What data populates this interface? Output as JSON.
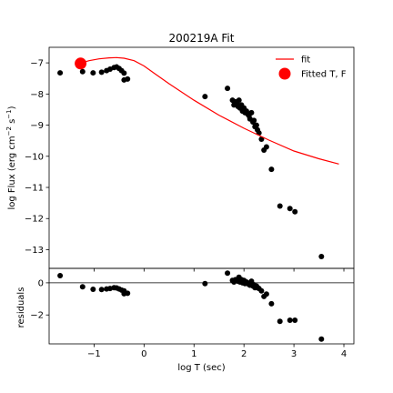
{
  "chart_data": [
    {
      "type": "scatter",
      "title": "200219A Fit",
      "xlabel": "",
      "ylabel": "log Flux (erg cm⁻² s⁻¹)",
      "xlim": [
        -1.9,
        4.2
      ],
      "ylim": [
        -13.6,
        -6.5
      ],
      "xticks": [
        -1,
        0,
        1,
        2,
        3,
        4
      ],
      "yticks": [
        -13,
        -12,
        -11,
        -10,
        -9,
        -8,
        -7
      ],
      "ytick_labels": [
        "−13",
        "−12",
        "−11",
        "−10",
        "−9",
        "−8",
        "−7"
      ],
      "grid": false,
      "legend": {
        "placement": "top-right",
        "entries": [
          "fit",
          "Fitted T, F"
        ]
      },
      "colors": {
        "data": "#000000",
        "fit": "#ff0000",
        "fitted_point": "#ff0000"
      },
      "series": [
        {
          "name": "fit",
          "kind": "line",
          "x": [
            -1.25,
            -1.1,
            -0.9,
            -0.7,
            -0.55,
            -0.4,
            -0.2,
            0.0,
            0.2,
            0.5,
            1.0,
            1.5,
            2.0,
            2.5,
            3.0,
            3.5,
            3.9
          ],
          "y": [
            -7.0,
            -6.93,
            -6.87,
            -6.84,
            -6.83,
            -6.85,
            -6.93,
            -7.1,
            -7.33,
            -7.67,
            -8.2,
            -8.68,
            -9.1,
            -9.48,
            -9.83,
            -10.08,
            -10.25
          ]
        },
        {
          "name": "Fitted T, F",
          "kind": "marker",
          "x": [
            -1.27
          ],
          "y": [
            -7.02
          ]
        },
        {
          "kind": "points",
          "x": [
            -1.68,
            -1.23,
            -1.02,
            -0.85,
            -0.75,
            -0.68,
            -0.6,
            -0.55,
            -0.5,
            -0.45,
            -0.4,
            -0.4,
            -0.33,
            1.22,
            1.67,
            1.77,
            1.8,
            1.83,
            1.86,
            1.88,
            1.9,
            1.92,
            1.95,
            1.97,
            2.0,
            2.02,
            2.05,
            2.08,
            2.1,
            2.12,
            2.15,
            2.18,
            2.2,
            2.22,
            2.25,
            2.27,
            2.3,
            2.35,
            2.4,
            2.45,
            2.55,
            2.72,
            2.92,
            3.02,
            3.55
          ],
          "y": [
            -7.32,
            -7.28,
            -7.32,
            -7.3,
            -7.25,
            -7.2,
            -7.15,
            -7.13,
            -7.18,
            -7.25,
            -7.33,
            -7.55,
            -7.52,
            -8.08,
            -7.82,
            -8.2,
            -8.35,
            -8.25,
            -8.3,
            -8.4,
            -8.2,
            -8.45,
            -8.35,
            -8.55,
            -8.45,
            -8.6,
            -8.55,
            -8.65,
            -8.7,
            -8.8,
            -8.6,
            -8.9,
            -8.85,
            -9.05,
            -9.0,
            -9.15,
            -9.25,
            -9.45,
            -9.8,
            -9.7,
            -10.42,
            -11.6,
            -11.68,
            -11.78,
            -13.22
          ]
        }
      ]
    },
    {
      "type": "scatter",
      "title": "",
      "xlabel": "log T (sec)",
      "ylabel": "residuals",
      "xlim": [
        -1.9,
        4.2
      ],
      "ylim": [
        -3.8,
        0.9
      ],
      "xticks": [
        -1,
        0,
        1,
        2,
        3,
        4
      ],
      "xtick_labels": [
        "−1",
        "0",
        "1",
        "2",
        "3",
        "4"
      ],
      "yticks": [
        -2,
        0
      ],
      "ytick_labels": [
        "−2",
        "0"
      ],
      "hline": 0,
      "grid": false,
      "series": [
        {
          "kind": "points",
          "x": [
            -1.68,
            -1.23,
            -1.02,
            -0.85,
            -0.75,
            -0.68,
            -0.6,
            -0.55,
            -0.5,
            -0.45,
            -0.4,
            -0.4,
            -0.33,
            1.22,
            1.67,
            1.77,
            1.8,
            1.83,
            1.86,
            1.88,
            1.9,
            1.92,
            1.95,
            1.97,
            2.0,
            2.02,
            2.05,
            2.08,
            2.1,
            2.12,
            2.15,
            2.18,
            2.2,
            2.22,
            2.25,
            2.27,
            2.3,
            2.35,
            2.4,
            2.45,
            2.55,
            2.72,
            2.92,
            3.02,
            3.55
          ],
          "y": [
            0.45,
            -0.25,
            -0.4,
            -0.42,
            -0.38,
            -0.35,
            -0.3,
            -0.32,
            -0.38,
            -0.45,
            -0.5,
            -0.68,
            -0.65,
            -0.05,
            0.6,
            0.15,
            0.05,
            0.2,
            0.15,
            0.1,
            0.35,
            0.05,
            0.2,
            0.0,
            0.15,
            -0.05,
            0.05,
            -0.05,
            -0.1,
            -0.15,
            0.1,
            -0.2,
            -0.12,
            -0.3,
            -0.2,
            -0.3,
            -0.35,
            -0.5,
            -0.85,
            -0.7,
            -1.3,
            -2.4,
            -2.33,
            -2.33,
            -3.5
          ]
        }
      ]
    }
  ]
}
